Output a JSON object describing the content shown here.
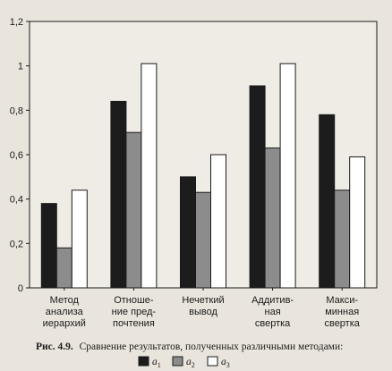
{
  "chart_data": {
    "type": "bar",
    "categories": [
      [
        "Метод",
        "анализа",
        "иерархий"
      ],
      [
        "Отноше-",
        "ние пред-",
        "почтения"
      ],
      [
        "Нечеткий",
        "вывод"
      ],
      [
        "Аддитив-",
        "ная",
        "свертка"
      ],
      [
        "Макси-",
        "минная",
        "свертка"
      ]
    ],
    "series": [
      {
        "name": "a1",
        "color": "#1c1c1c",
        "values": [
          0.38,
          0.84,
          0.5,
          0.91,
          0.78
        ]
      },
      {
        "name": "a2",
        "color": "#8c8c8c",
        "values": [
          0.18,
          0.7,
          0.43,
          0.63,
          0.44
        ]
      },
      {
        "name": "a3",
        "color": "#ffffff",
        "values": [
          0.44,
          1.01,
          0.6,
          1.01,
          0.59
        ]
      }
    ],
    "yticks": [
      "0",
      "0,2",
      "0,4",
      "0,6",
      "0,8",
      "1",
      "1,2"
    ],
    "ylim": [
      0,
      1.2
    ],
    "grid": false,
    "legend_position": "bottom"
  },
  "caption": {
    "label": "Рис. 4.9.",
    "text": "Сравнение результатов, полученных различными методами:"
  },
  "legend": [
    {
      "sym": "a",
      "sub": "1"
    },
    {
      "sym": "a",
      "sub": "2"
    },
    {
      "sym": "a",
      "sub": "3"
    }
  ]
}
